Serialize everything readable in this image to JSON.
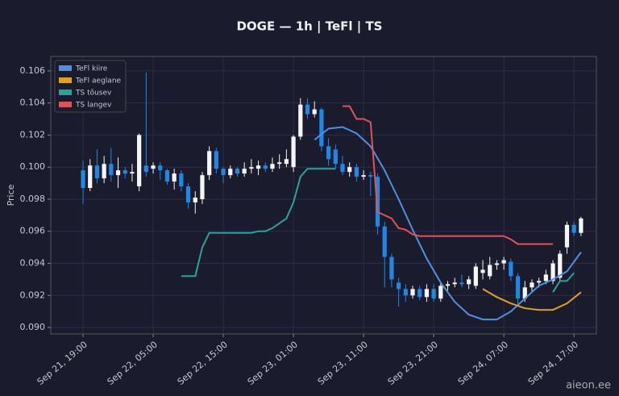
{
  "chart_data": {
    "type": "candlestick",
    "title": "DOGE — 1h  |  TeFl  |  TS",
    "y_label": "Price",
    "watermark": "aieon.ee",
    "up_color": "#f5f5f5",
    "down_color": "#1e88e5",
    "grid": true,
    "legend": "upper left",
    "xlim": [
      -4.6,
      73.2
    ],
    "xticks": [
      {
        "value": 0,
        "label": "Sep 21, 19:00"
      },
      {
        "value": 10,
        "label": "Sep 22, 05:00"
      },
      {
        "value": 20,
        "label": "Sep 22, 15:00"
      },
      {
        "value": 30,
        "label": "Sep 23, 01:00"
      },
      {
        "value": 40,
        "label": "Sep 23, 11:00"
      },
      {
        "value": 50,
        "label": "Sep 23, 21:00"
      },
      {
        "value": 60,
        "label": "Sep 24, 07:00"
      },
      {
        "value": 70,
        "label": "Sep 24, 17:00"
      }
    ],
    "ylim": [
      0.0896,
      0.1069
    ],
    "yticks": [
      {
        "value": 0.09,
        "label": "0.090"
      },
      0.092,
      0.094,
      0.096,
      0.098,
      {
        "value": 0.1,
        "label": "0.100"
      },
      0.102,
      0.104,
      0.106
    ],
    "x": [
      0,
      1,
      2,
      3,
      4,
      5,
      6,
      7,
      8,
      9,
      10,
      11,
      12,
      13,
      14,
      15,
      16,
      17,
      18,
      19,
      20,
      21,
      22,
      23,
      24,
      25,
      26,
      27,
      28,
      29,
      30,
      31,
      32,
      33,
      34,
      35,
      36,
      37,
      38,
      39,
      40,
      41,
      42,
      43,
      44,
      45,
      46,
      47,
      48,
      49,
      50,
      51,
      52,
      53,
      54,
      55,
      56,
      57,
      58,
      59,
      60,
      61,
      62,
      63,
      64,
      65,
      66,
      67,
      68,
      69,
      70,
      71
    ],
    "open": [
      0.0998,
      0.0987,
      0.1001,
      0.0993,
      0.1002,
      0.0995,
      0.0998,
      0.0996,
      0.0988,
      0.1001,
      0.0999,
      0.1001,
      0.0998,
      0.0991,
      0.0996,
      0.0988,
      0.0978,
      0.098,
      0.0995,
      0.101,
      0.0999,
      0.0995,
      0.0999,
      0.0996,
      0.0999,
      0.0999,
      0.1001,
      0.0999,
      0.1002,
      0.1002,
      0.1,
      0.1019,
      0.1039,
      0.1033,
      0.1036,
      0.1013,
      0.1011,
      0.1002,
      0.0997,
      0.1,
      0.0994,
      0.0995,
      0.0994,
      0.0963,
      0.0944,
      0.0928,
      0.0924,
      0.092,
      0.0924,
      0.0919,
      0.0924,
      0.0918,
      0.0926,
      0.0927,
      0.0928,
      0.0927,
      0.0926,
      0.0934,
      0.0932,
      0.0939,
      0.094,
      0.0941,
      0.0932,
      0.0918,
      0.0925,
      0.0928,
      0.0929,
      0.0929,
      0.0931,
      0.095,
      0.0964,
      0.0959
    ],
    "high": [
      0.1004,
      0.1005,
      0.1011,
      0.1007,
      0.1012,
      0.1006,
      0.1,
      0.1002,
      0.1021,
      0.1059,
      0.1003,
      0.1003,
      0.0999,
      0.0999,
      0.0998,
      0.099,
      0.0985,
      0.0997,
      0.1013,
      0.1012,
      0.1,
      0.1001,
      0.1,
      0.1003,
      0.1005,
      0.1004,
      0.1003,
      0.1006,
      0.1008,
      0.1011,
      0.102,
      0.1043,
      0.1043,
      0.1041,
      0.1037,
      0.1018,
      0.1014,
      0.1007,
      0.1003,
      0.1002,
      0.0998,
      0.0997,
      0.0996,
      0.0966,
      0.0946,
      0.0931,
      0.0927,
      0.0926,
      0.0926,
      0.0927,
      0.0927,
      0.0928,
      0.0929,
      0.0931,
      0.0933,
      0.0932,
      0.094,
      0.0942,
      0.0944,
      0.0942,
      0.0944,
      0.0943,
      0.0934,
      0.0929,
      0.093,
      0.0931,
      0.0936,
      0.0942,
      0.0948,
      0.0966,
      0.0966,
      0.0969
    ],
    "low": [
      0.0977,
      0.0985,
      0.099,
      0.099,
      0.0991,
      0.0987,
      0.0993,
      0.0991,
      0.0985,
      0.0994,
      0.0996,
      0.0992,
      0.0989,
      0.0986,
      0.0985,
      0.0974,
      0.0971,
      0.0977,
      0.0992,
      0.0996,
      0.099,
      0.0993,
      0.0994,
      0.0994,
      0.0996,
      0.0995,
      0.0997,
      0.0997,
      0.0999,
      0.1,
      0.0997,
      0.1017,
      0.103,
      0.1031,
      0.101,
      0.1001,
      0.0999,
      0.0995,
      0.0994,
      0.0991,
      0.0992,
      0.0982,
      0.0958,
      0.0925,
      0.0925,
      0.0913,
      0.0916,
      0.0918,
      0.0917,
      0.0916,
      0.0916,
      0.0916,
      0.0923,
      0.0925,
      0.0925,
      0.0924,
      0.0924,
      0.093,
      0.093,
      0.0936,
      0.0936,
      0.0929,
      0.0914,
      0.0916,
      0.0922,
      0.0925,
      0.0927,
      0.0927,
      0.0929,
      0.0946,
      0.0957,
      0.0957
    ],
    "close": [
      0.0987,
      0.1001,
      0.0993,
      0.1002,
      0.0995,
      0.0998,
      0.0996,
      0.0997,
      0.102,
      0.0997,
      0.1001,
      0.0998,
      0.0991,
      0.0996,
      0.0988,
      0.0978,
      0.0981,
      0.0995,
      0.101,
      0.0999,
      0.0995,
      0.0999,
      0.0996,
      0.0999,
      0.1,
      0.1001,
      0.0999,
      0.1002,
      0.1003,
      0.1005,
      0.1019,
      0.1039,
      0.1033,
      0.1036,
      0.1013,
      0.1005,
      0.1002,
      0.0997,
      0.1,
      0.0994,
      0.0995,
      0.0994,
      0.0963,
      0.0944,
      0.093,
      0.0924,
      0.092,
      0.0924,
      0.0919,
      0.0924,
      0.0918,
      0.0926,
      0.0927,
      0.0928,
      0.0927,
      0.093,
      0.0938,
      0.0936,
      0.0939,
      0.094,
      0.0942,
      0.0932,
      0.0918,
      0.0925,
      0.0928,
      0.0929,
      0.0933,
      0.094,
      0.0946,
      0.0964,
      0.0959,
      0.0968
    ],
    "series": [
      {
        "name": "TeFl kiire",
        "color": "#4f8fe0",
        "x": [
          33,
          35,
          37,
          39,
          41,
          43,
          45,
          47,
          49,
          51,
          53,
          55,
          57,
          59,
          61,
          63,
          65,
          67,
          69,
          71
        ],
        "values": [
          0.1017,
          0.1024,
          0.1025,
          0.1021,
          0.1013,
          0.0998,
          0.098,
          0.0961,
          0.0943,
          0.0928,
          0.0916,
          0.0908,
          0.0905,
          0.0905,
          0.091,
          0.0918,
          0.0926,
          0.093,
          0.0935,
          0.0947
        ]
      },
      {
        "name": "TeFl aeglane",
        "color": "#e0a020",
        "x": [
          57,
          59,
          61,
          63,
          65,
          67,
          69,
          71
        ],
        "values": [
          0.0924,
          0.0919,
          0.0915,
          0.0912,
          0.0911,
          0.0911,
          0.0915,
          0.0922
        ]
      },
      {
        "name": "TS tõusev",
        "color": "#26a69a",
        "x": [
          14,
          15,
          16,
          17,
          18,
          19,
          20,
          21,
          22,
          23,
          24,
          25,
          26,
          27,
          28,
          29,
          30,
          31,
          32,
          33,
          34,
          35,
          36,
          37,
          67,
          68,
          69,
          70
        ],
        "values": [
          0.0932,
          0.0932,
          0.0932,
          0.095,
          0.0959,
          0.0959,
          0.0959,
          0.0959,
          0.0959,
          0.0959,
          0.0959,
          0.096,
          0.096,
          0.0962,
          0.0965,
          0.0968,
          0.0978,
          0.0994,
          0.0999,
          0.0999,
          0.0999,
          0.0999,
          0.0999,
          null,
          0.0922,
          0.0929,
          0.0929,
          0.0934
        ]
      },
      {
        "name": "TS langev",
        "color": "#e0525a",
        "x": [
          37,
          38,
          39,
          40,
          41,
          42,
          43,
          44,
          45,
          46,
          47,
          48,
          49,
          50,
          51,
          52,
          53,
          54,
          55,
          56,
          57,
          58,
          59,
          60,
          61,
          62,
          63,
          64,
          65,
          66,
          67
        ],
        "values": [
          0.1038,
          0.1038,
          0.103,
          0.103,
          0.1028,
          0.0972,
          0.097,
          0.0968,
          0.0962,
          0.0961,
          0.0958,
          0.0957,
          0.0957,
          0.0957,
          0.0957,
          0.0957,
          0.0957,
          0.0957,
          0.0957,
          0.0957,
          0.0957,
          0.0957,
          0.0957,
          0.0957,
          0.0955,
          0.0952,
          0.0952,
          0.0952,
          0.0952,
          0.0952,
          0.0952
        ]
      }
    ]
  }
}
